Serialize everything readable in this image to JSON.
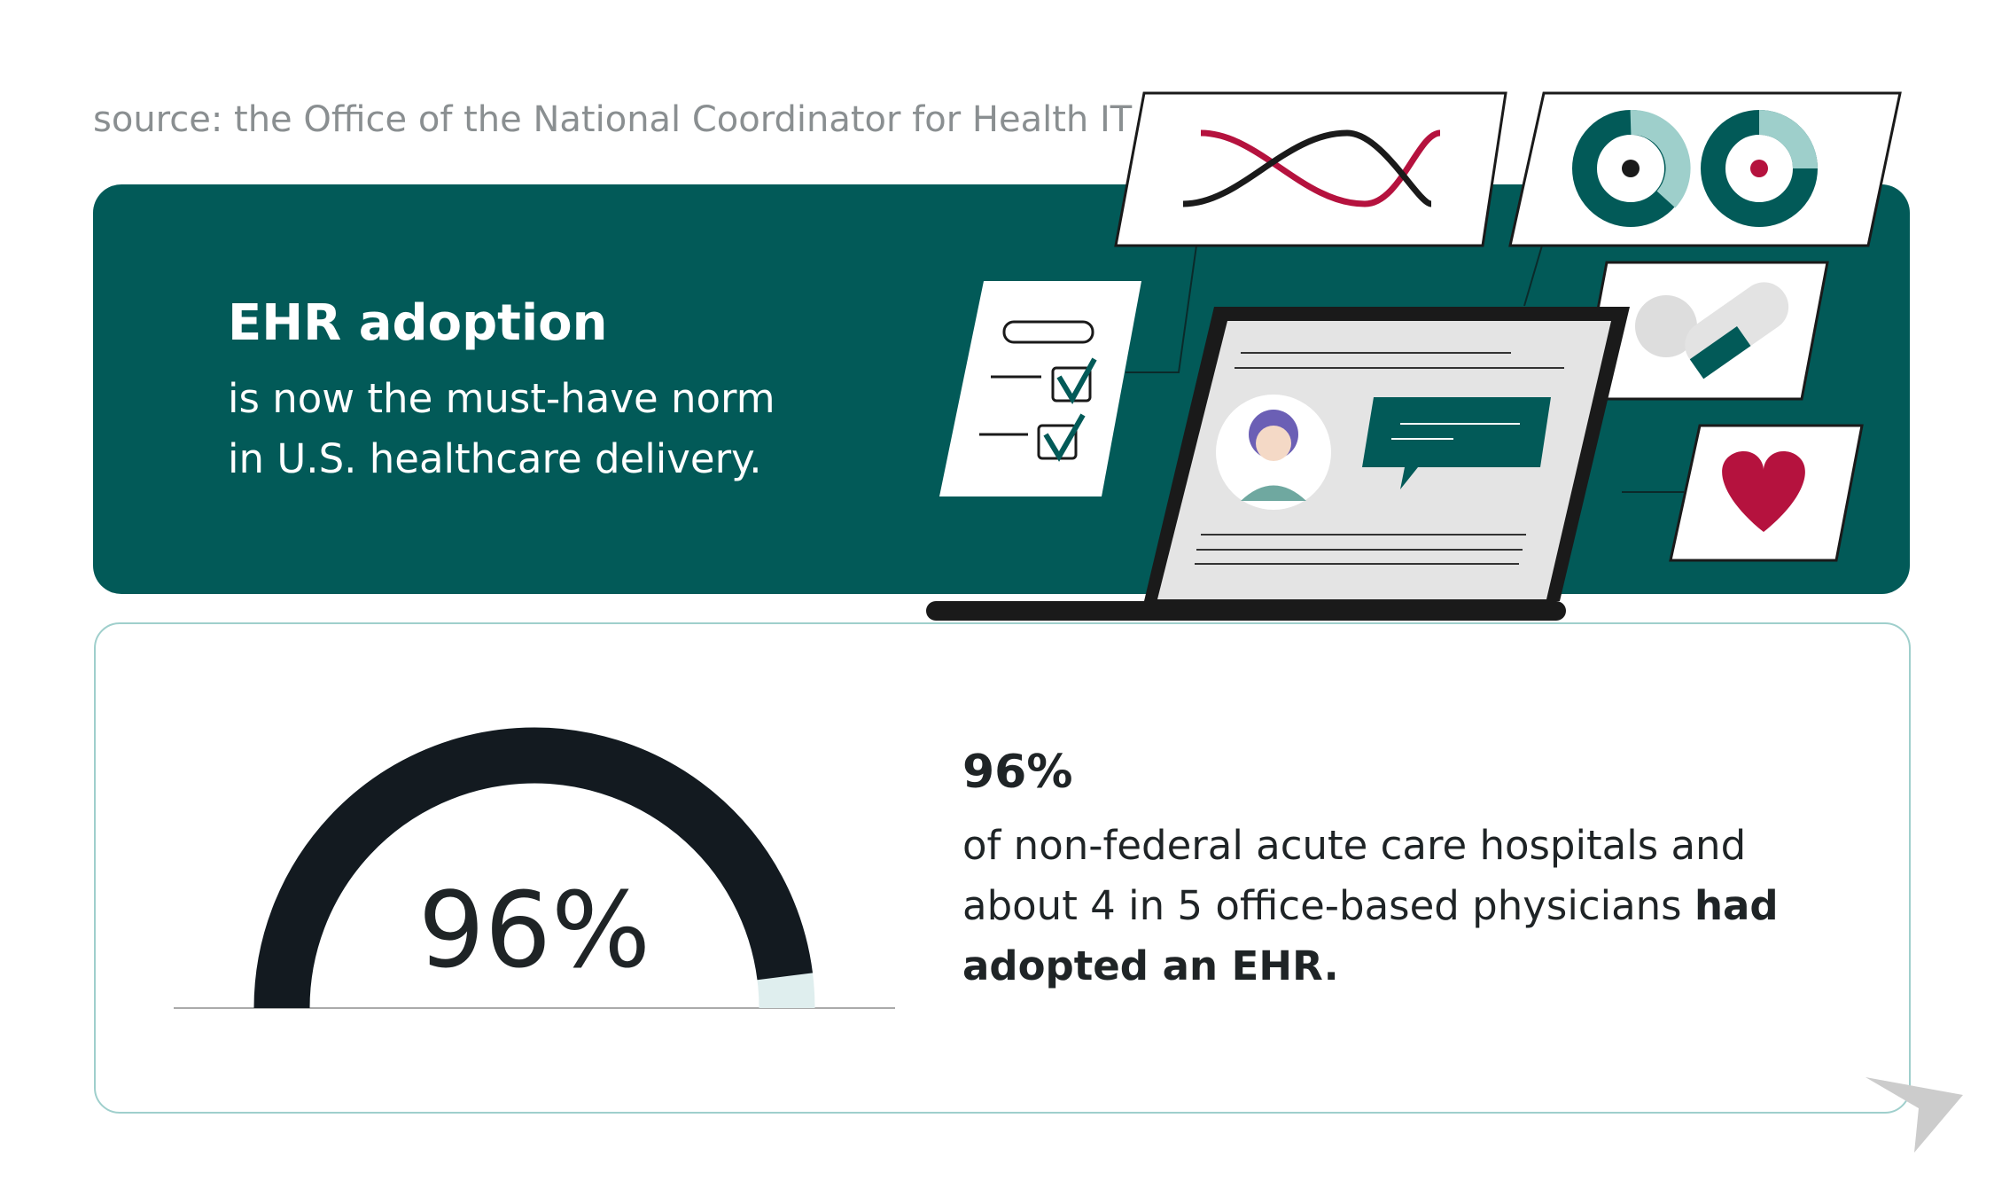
{
  "source": "source: the Office of the National Coordinator for Health IT",
  "header": {
    "title": "EHR adoption",
    "subtitle_lines": [
      "is now the must-have norm",
      "in U.S. healthcare delivery."
    ]
  },
  "gauge": {
    "value": 96,
    "label": "96%"
  },
  "stat": {
    "heading": "96%",
    "body": "of non-federal acute care hospitals and about 4 in 5 office-based physicians ",
    "emphasis": "had adopted an EHR."
  }
}
